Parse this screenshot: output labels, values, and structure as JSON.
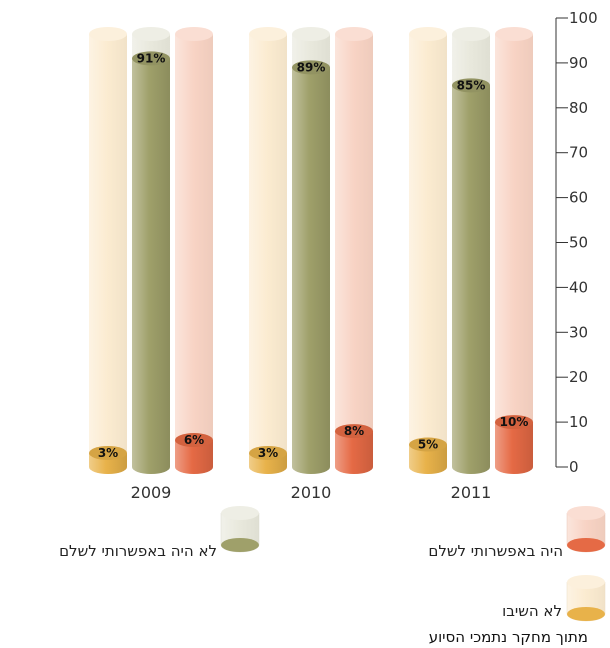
{
  "chart_data": {
    "type": "bar",
    "categories": [
      "2009",
      "2010",
      "2011"
    ],
    "series": [
      {
        "name": "לא השיבו",
        "values": [
          3,
          3,
          5
        ],
        "labels": [
          "3%",
          "3%",
          "5%"
        ],
        "color": "#E8B24A",
        "ghost": "#FBEBD0"
      },
      {
        "name": "לא היה באפשרותי לשלם",
        "values": [
          91,
          89,
          85
        ],
        "labels": [
          "91%",
          "89%",
          "85%"
        ],
        "color": "#9FA06A",
        "ghost": "#E8E8DC"
      },
      {
        "name": "היה באפשרותי לשלם",
        "values": [
          6,
          8,
          10
        ],
        "labels": [
          "6%",
          "8%",
          "10%"
        ],
        "color": "#E56A45",
        "ghost": "#F8D3C4"
      }
    ],
    "yticks": [
      "0",
      "10",
      "20",
      "30",
      "40",
      "50",
      "60",
      "70",
      "80",
      "90",
      "100"
    ],
    "ylim": [
      0,
      100
    ],
    "source": "מתוך מחקר נתמכי הסיוע"
  }
}
